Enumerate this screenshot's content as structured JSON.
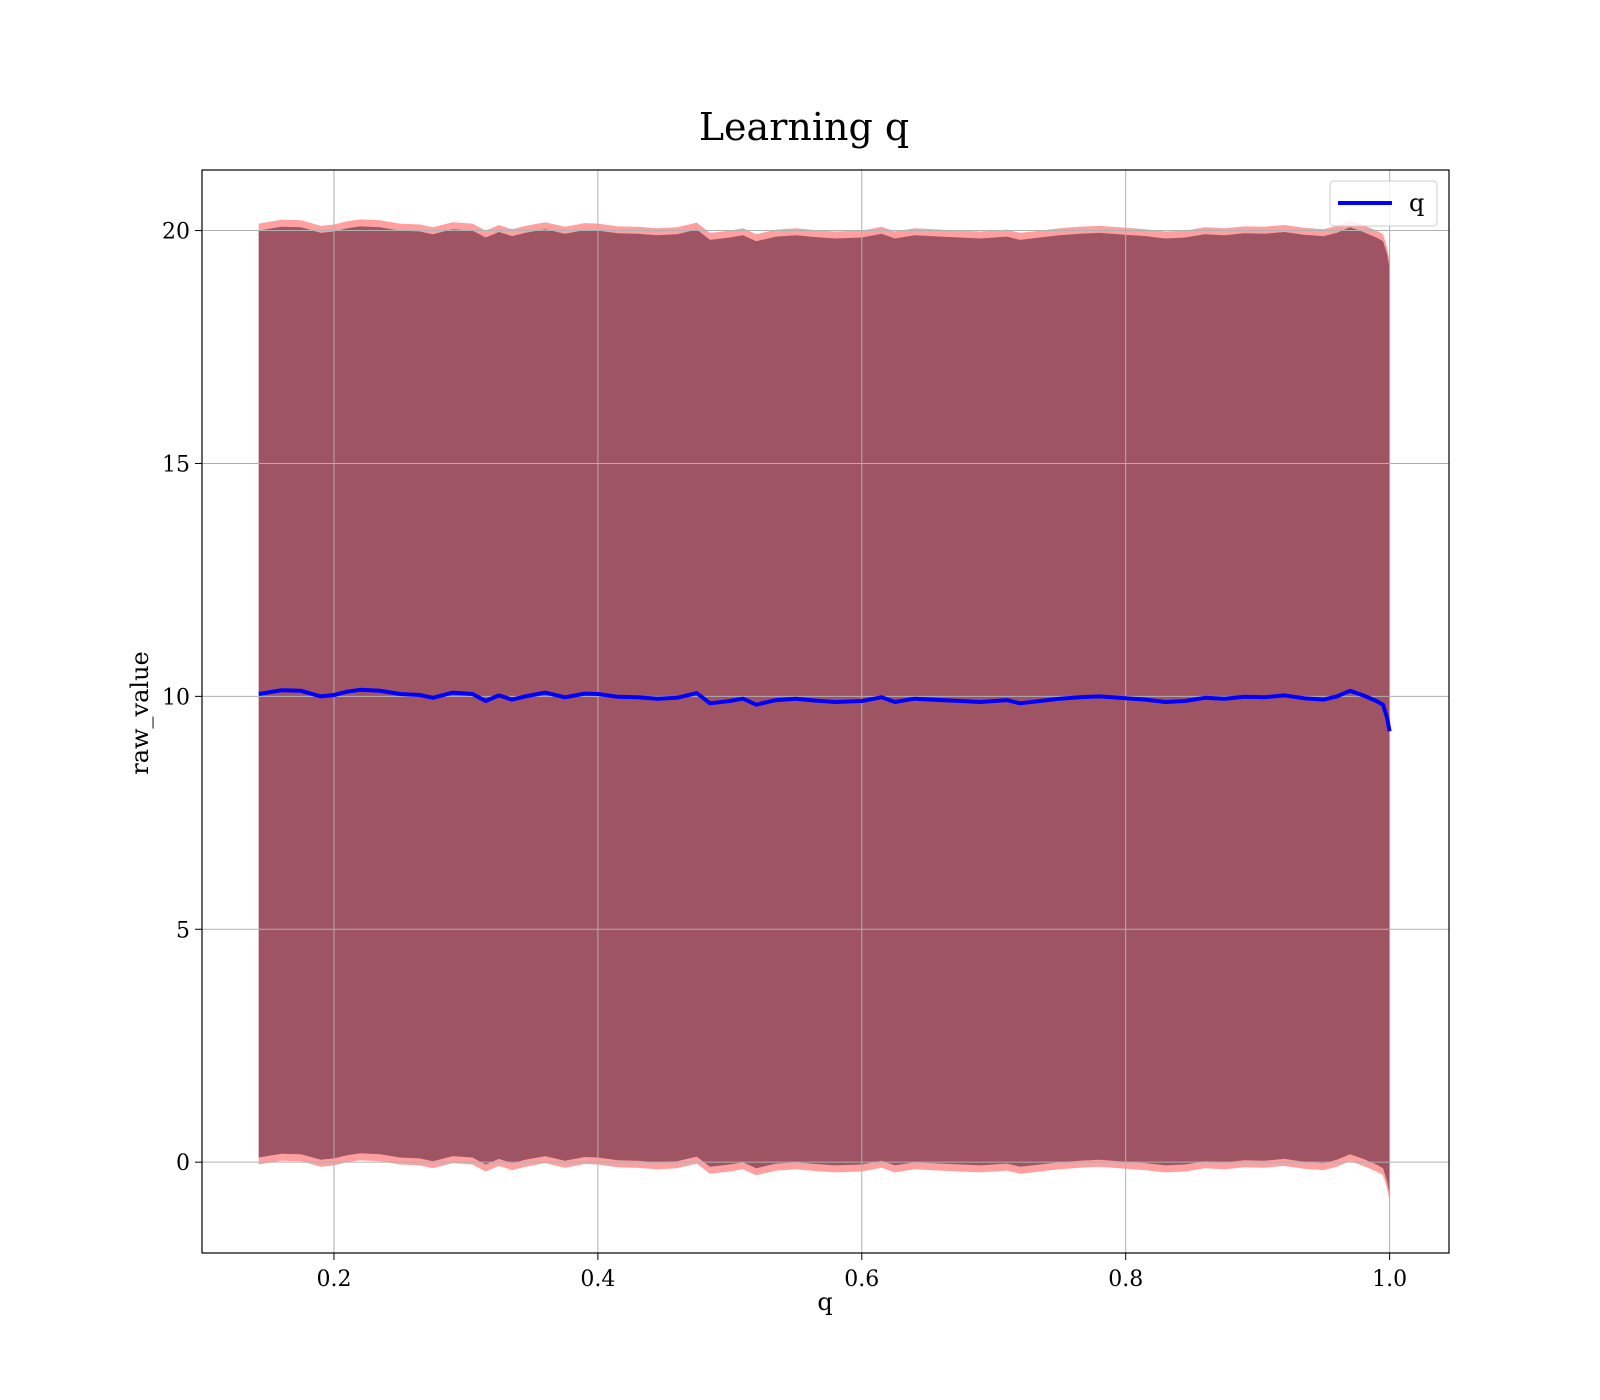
{
  "chart_data": {
    "type": "line",
    "title": "Learning q",
    "xlabel": "q",
    "ylabel": "raw_value",
    "xlim": [
      0.1,
      1.045
    ],
    "ylim": [
      -1.95,
      21.3
    ],
    "xticks": [
      0.2,
      0.4,
      0.6,
      0.8,
      1.0
    ],
    "xtick_labels": [
      "0.2",
      "0.4",
      "0.6",
      "0.8",
      "1.0"
    ],
    "yticks": [
      0,
      5,
      10,
      15,
      20
    ],
    "ytick_labels": [
      "0",
      "5",
      "10",
      "15",
      "20"
    ],
    "grid": true,
    "legend": {
      "position": "top-right",
      "entries": [
        "q"
      ]
    },
    "series": [
      {
        "name": "q",
        "color": "#0000ff",
        "x": [
          0.143,
          0.16,
          0.175,
          0.19,
          0.2,
          0.21,
          0.22,
          0.235,
          0.25,
          0.265,
          0.275,
          0.29,
          0.305,
          0.315,
          0.325,
          0.335,
          0.345,
          0.36,
          0.375,
          0.39,
          0.4,
          0.415,
          0.43,
          0.445,
          0.46,
          0.475,
          0.485,
          0.5,
          0.51,
          0.52,
          0.535,
          0.55,
          0.565,
          0.58,
          0.6,
          0.615,
          0.625,
          0.64,
          0.66,
          0.675,
          0.69,
          0.71,
          0.72,
          0.735,
          0.75,
          0.765,
          0.78,
          0.8,
          0.815,
          0.83,
          0.845,
          0.86,
          0.875,
          0.89,
          0.905,
          0.92,
          0.935,
          0.95,
          0.96,
          0.97,
          0.98,
          0.99,
          0.995,
          0.998,
          1.0
        ],
        "y": [
          10.05,
          10.13,
          10.12,
          10.0,
          10.03,
          10.1,
          10.14,
          10.12,
          10.05,
          10.03,
          9.97,
          10.08,
          10.05,
          9.9,
          10.02,
          9.93,
          10.0,
          10.08,
          9.98,
          10.06,
          10.05,
          9.99,
          9.98,
          9.95,
          9.97,
          10.07,
          9.85,
          9.9,
          9.95,
          9.82,
          9.92,
          9.95,
          9.91,
          9.88,
          9.9,
          9.98,
          9.88,
          9.95,
          9.92,
          9.9,
          9.88,
          9.92,
          9.85,
          9.9,
          9.95,
          9.98,
          10.0,
          9.96,
          9.93,
          9.88,
          9.9,
          9.97,
          9.95,
          9.99,
          9.98,
          10.02,
          9.96,
          9.93,
          10.0,
          10.12,
          10.02,
          9.9,
          9.82,
          9.55,
          9.25
        ]
      }
    ],
    "bands": [
      {
        "name": "outer",
        "color": "#ff7f7f",
        "offset_upper": 10.1,
        "offset_lower": 10.1
      },
      {
        "name": "inner",
        "color": "#7f3b50",
        "offset_upper": 9.95,
        "offset_lower": 9.95
      }
    ]
  }
}
